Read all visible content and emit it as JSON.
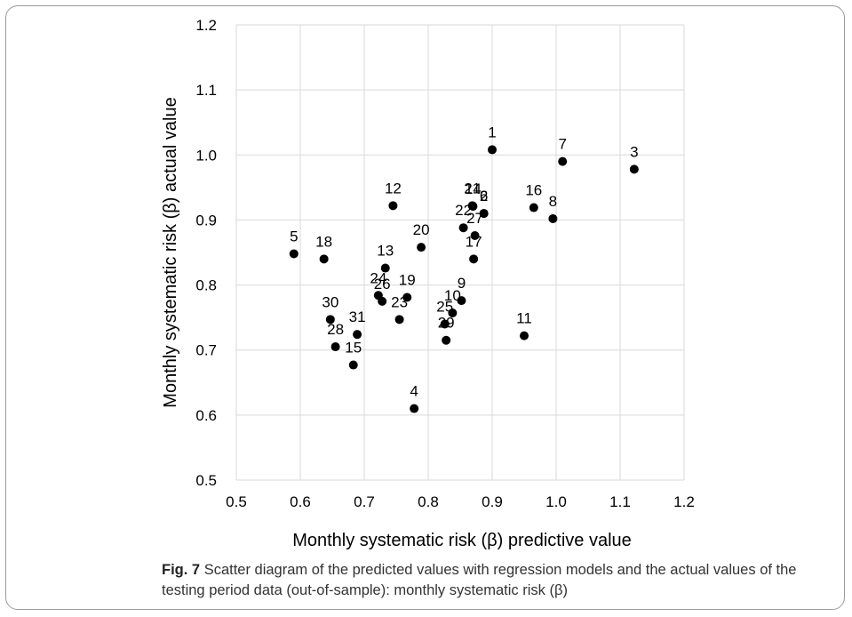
{
  "chart_data": {
    "type": "scatter",
    "xlabel": "Monthly systematic risk (β) predictive value",
    "ylabel": "Monthly systematic risk (β) actual value",
    "xlim": [
      0.5,
      1.2
    ],
    "ylim": [
      0.5,
      1.2
    ],
    "x_ticks": [
      "0.5",
      "0.6",
      "0.7",
      "0.8",
      "0.9",
      "1.0",
      "1.1",
      "1.2"
    ],
    "y_ticks": [
      "0.5",
      "0.6",
      "0.7",
      "0.8",
      "0.9",
      "1.0",
      "1.1",
      "1.2"
    ],
    "grid": true,
    "points": [
      {
        "label": "1",
        "x": 0.9,
        "y": 1.008
      },
      {
        "label": "2",
        "x": 0.887,
        "y": 0.91
      },
      {
        "label": "3",
        "x": 1.122,
        "y": 0.978
      },
      {
        "label": "4",
        "x": 0.778,
        "y": 0.61
      },
      {
        "label": "5",
        "x": 0.59,
        "y": 0.848
      },
      {
        "label": "6",
        "x": 0.887,
        "y": 0.91
      },
      {
        "label": "7",
        "x": 1.01,
        "y": 0.99
      },
      {
        "label": "8",
        "x": 0.995,
        "y": 0.902
      },
      {
        "label": "9",
        "x": 0.852,
        "y": 0.776
      },
      {
        "label": "10",
        "x": 0.838,
        "y": 0.757
      },
      {
        "label": "11",
        "x": 0.95,
        "y": 0.722
      },
      {
        "label": "12",
        "x": 0.745,
        "y": 0.922
      },
      {
        "label": "13",
        "x": 0.733,
        "y": 0.826
      },
      {
        "label": "14",
        "x": 0.87,
        "y": 0.921
      },
      {
        "label": "15",
        "x": 0.683,
        "y": 0.677
      },
      {
        "label": "16",
        "x": 0.965,
        "y": 0.919
      },
      {
        "label": "17",
        "x": 0.871,
        "y": 0.84
      },
      {
        "label": "18",
        "x": 0.637,
        "y": 0.84
      },
      {
        "label": "19",
        "x": 0.767,
        "y": 0.781
      },
      {
        "label": "20",
        "x": 0.789,
        "y": 0.858
      },
      {
        "label": "21",
        "x": 0.869,
        "y": 0.922
      },
      {
        "label": "22",
        "x": 0.855,
        "y": 0.888
      },
      {
        "label": "23",
        "x": 0.755,
        "y": 0.747
      },
      {
        "label": "24",
        "x": 0.722,
        "y": 0.784
      },
      {
        "label": "25",
        "x": 0.826,
        "y": 0.74
      },
      {
        "label": "26",
        "x": 0.728,
        "y": 0.775
      },
      {
        "label": "27",
        "x": 0.873,
        "y": 0.876
      },
      {
        "label": "28",
        "x": 0.655,
        "y": 0.705
      },
      {
        "label": "29",
        "x": 0.828,
        "y": 0.715
      },
      {
        "label": "30",
        "x": 0.647,
        "y": 0.747
      },
      {
        "label": "31",
        "x": 0.689,
        "y": 0.724
      }
    ]
  },
  "caption": {
    "fig_label": "Fig. 7",
    "text": "Scatter diagram of the predicted values with regression models and the actual values of the testing period data (out-of-sample): monthly systematic risk (β)"
  }
}
